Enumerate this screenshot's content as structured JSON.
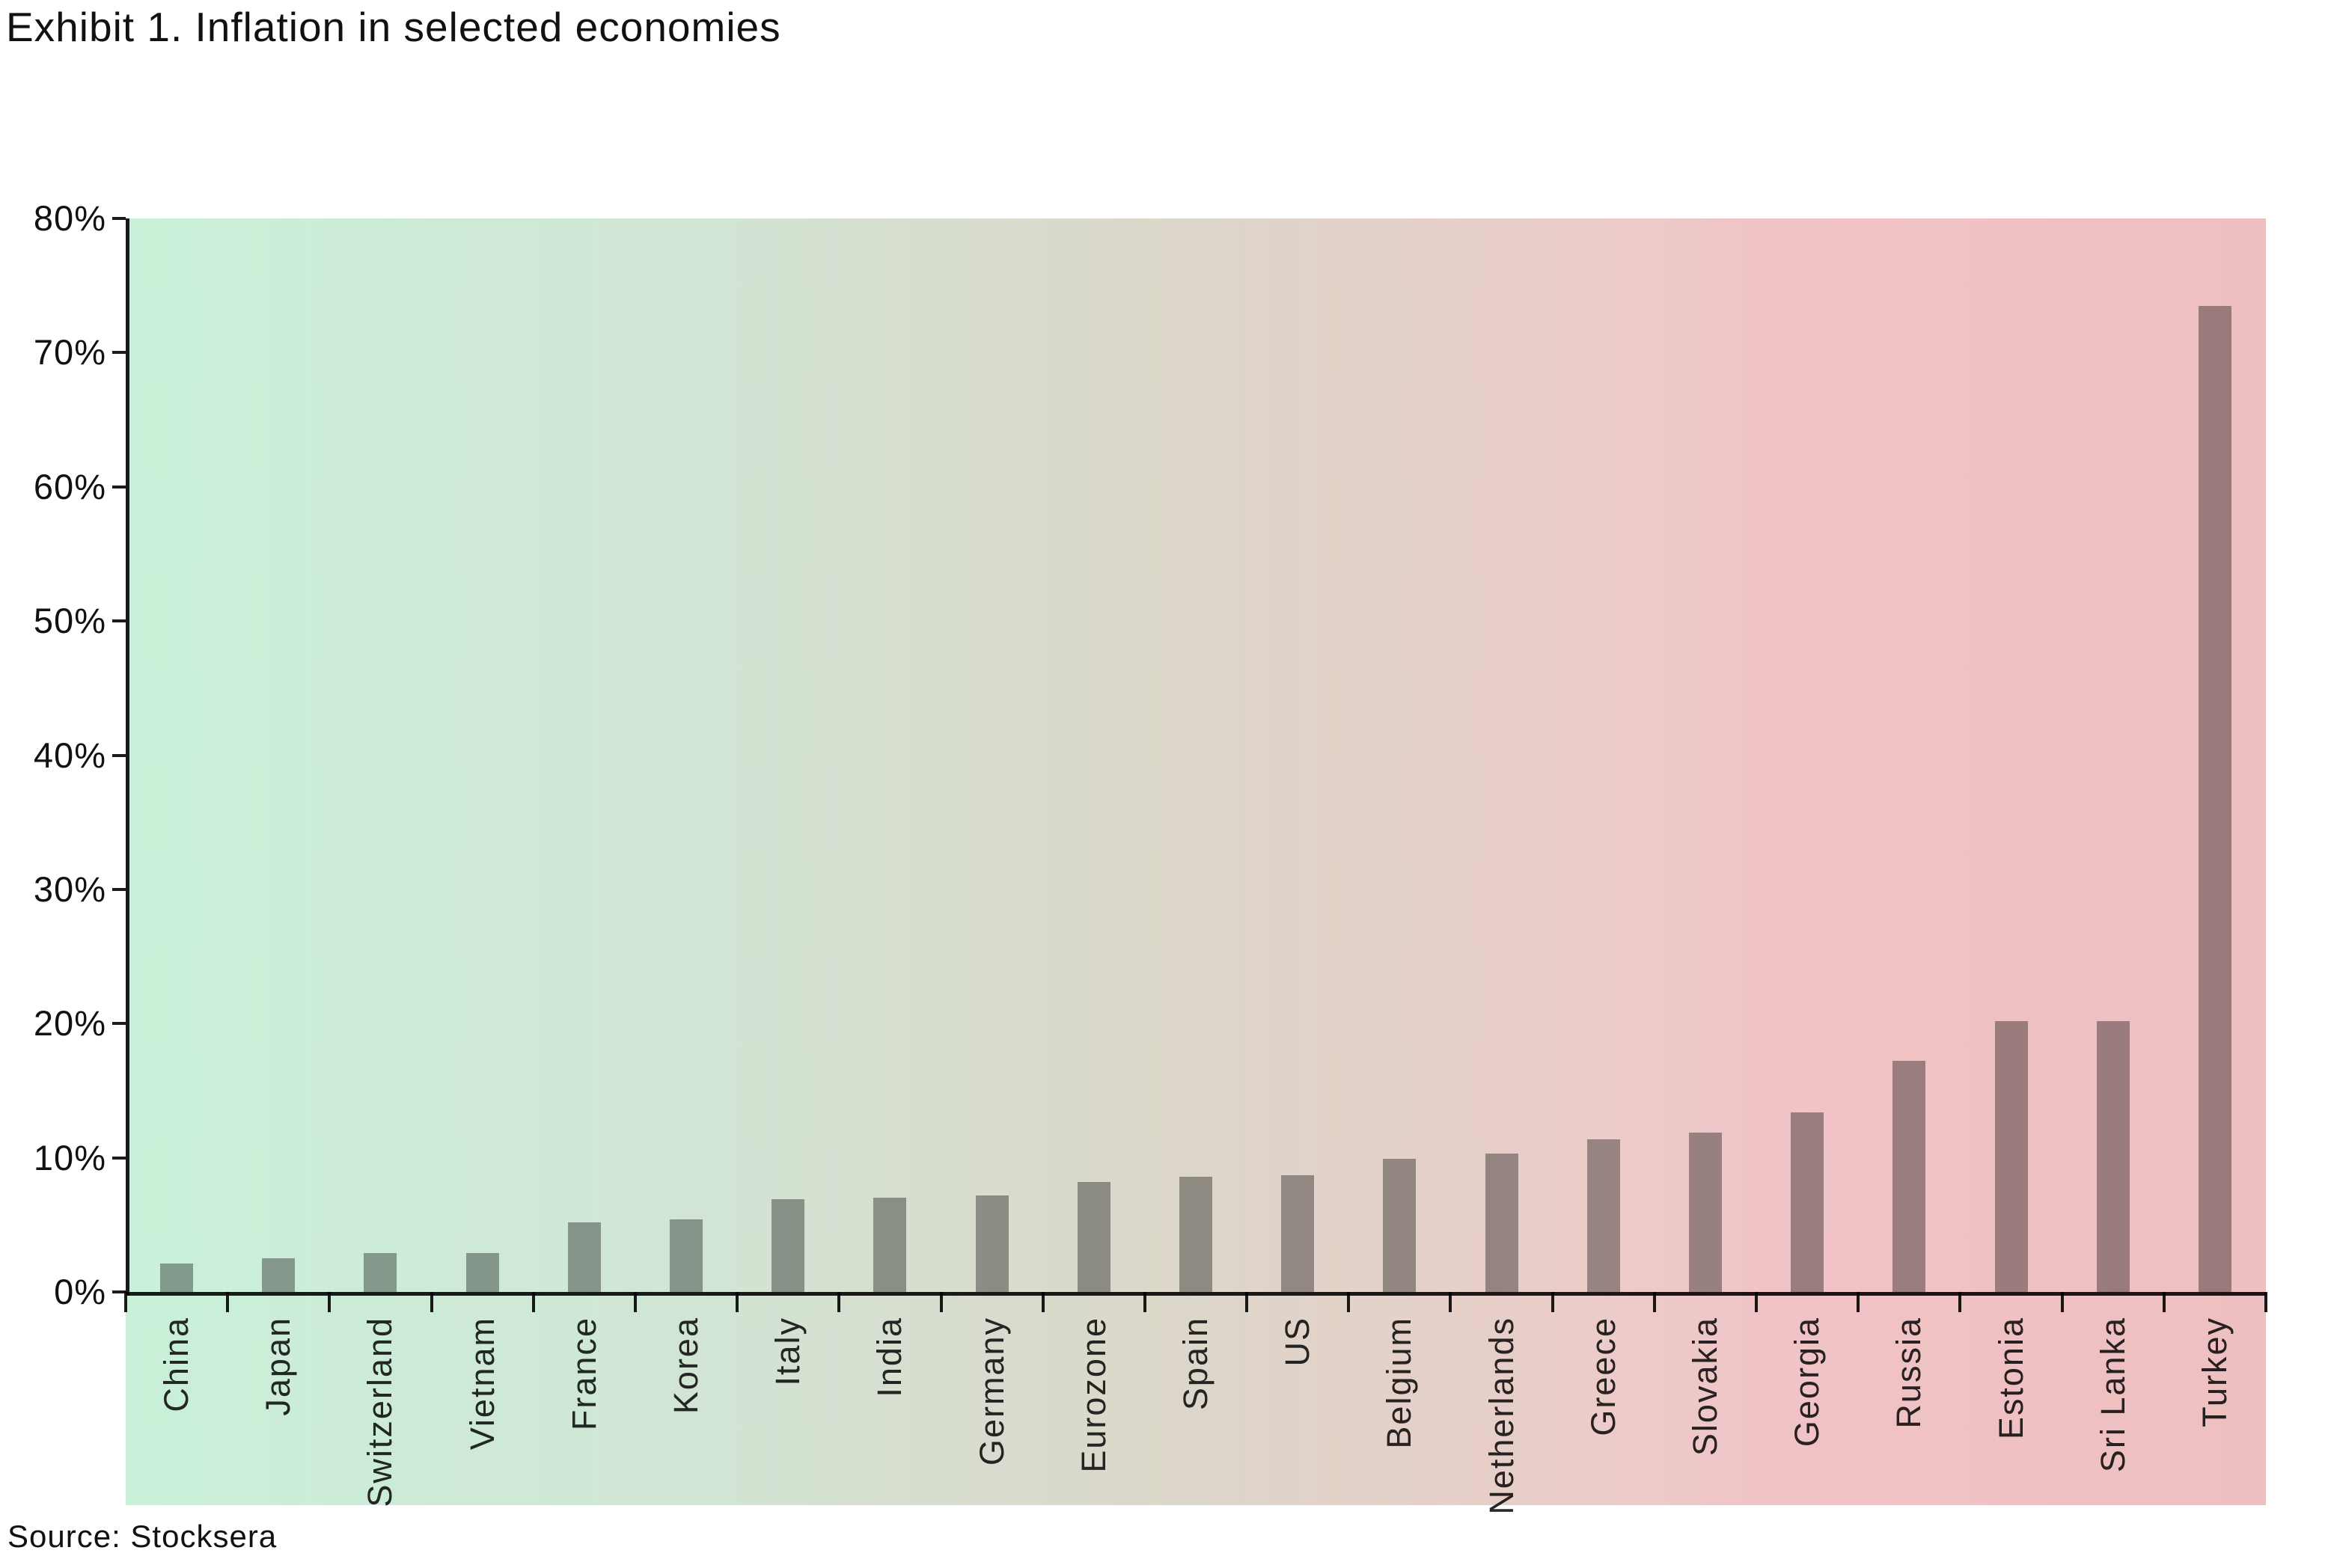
{
  "title": "Exhibit 1. Inflation in selected economies",
  "source_note": "Source: Stocksera",
  "chart_data": {
    "type": "bar",
    "title": "Exhibit 1. Inflation in selected economies",
    "categories": [
      "China",
      "Japan",
      "Switzerland",
      "Vietnam",
      "France",
      "Korea",
      "Italy",
      "India",
      "Germany",
      "Eurozone",
      "Spain",
      "US",
      "Belgium",
      "Netherlands",
      "Greece",
      "Slovakia",
      "Georgia",
      "Russia",
      "Estonia",
      "Sri Lanka",
      "Turkey"
    ],
    "values": [
      2.1,
      2.5,
      2.9,
      2.9,
      5.2,
      5.4,
      6.9,
      7.0,
      7.2,
      8.2,
      8.6,
      8.7,
      9.9,
      10.3,
      11.4,
      11.9,
      13.4,
      17.2,
      20.2,
      20.2,
      73.5
    ],
    "unit": "%",
    "xlabel": "",
    "ylabel": "",
    "ylim": [
      0,
      80
    ],
    "y_tick_step": 10,
    "y_tick_labels": [
      "0%",
      "10%",
      "20%",
      "30%",
      "40%",
      "50%",
      "60%",
      "70%",
      "80%"
    ],
    "grid": false,
    "legend_position": "none",
    "bar_color": "#a4a4a4",
    "axis_color": "#1c1c1c",
    "label_color": "#2a2a2a",
    "background_gradient": [
      "#c9f0d8",
      "#cfe8d6",
      "#dcd7ca",
      "#f0c3c6",
      "#eebfc0"
    ],
    "source": "Source: Stocksera"
  }
}
